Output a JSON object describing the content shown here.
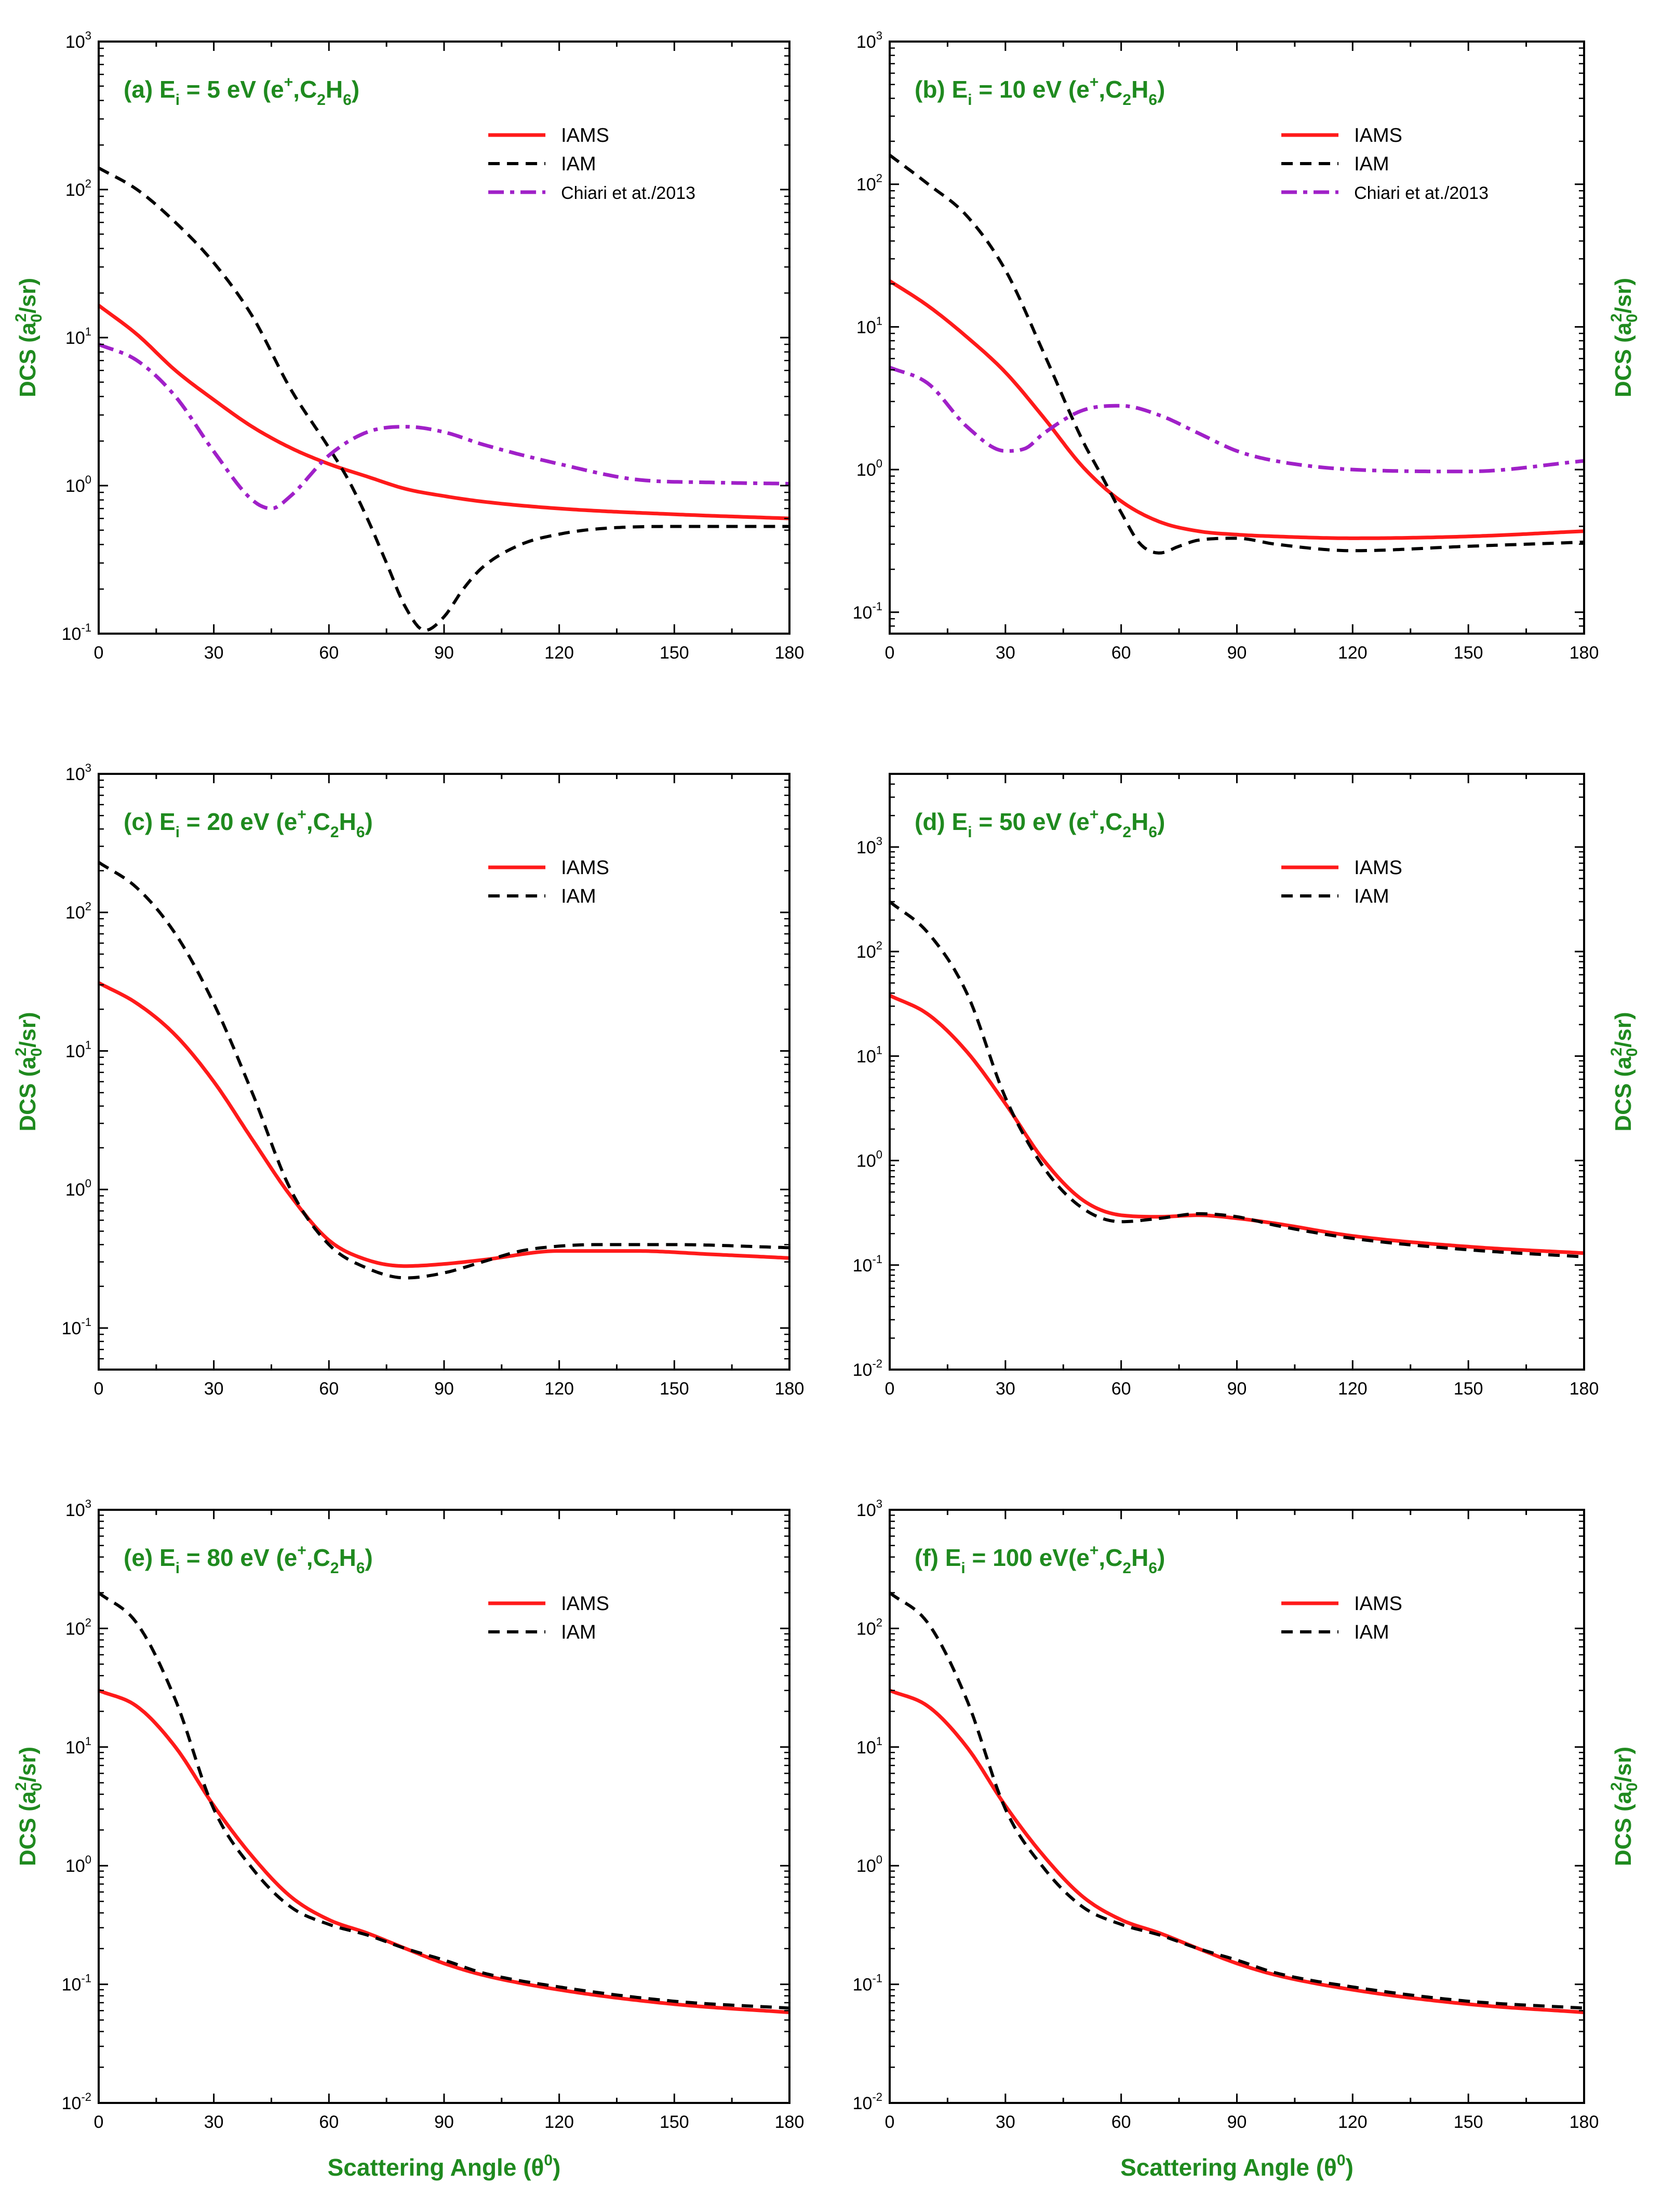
{
  "colors": {
    "IAMS": "#ff1a1a",
    "IAM": "#000000",
    "Chiari": "#a020c8",
    "label": "#1f8a1f"
  },
  "axis_text": {
    "ylabel_main": "DCS (a",
    "ylabel_sub": "0",
    "ylabel_sup": "2",
    "ylabel_end": "/sr)",
    "xlabel_main": "Scattering Angle (θ",
    "xlabel_sup": "0",
    "xlabel_end": ")"
  },
  "chart_data": [
    {
      "panel": "a",
      "type": "line",
      "title": {
        "pre": "(a) E",
        "sub1": "i",
        "mid": " = 5 eV (e",
        "sup": "+",
        "c": ",C",
        "sub2": "2",
        "h": "H",
        "sub3": "6",
        "end": ")"
      },
      "xlabel": "",
      "ylabel": "DCS (a0^2/sr)",
      "ylabel_side": "left",
      "xlim": [
        0,
        180
      ],
      "ylim_exp": [
        -1,
        3
      ],
      "yscale": "log",
      "xticks": [
        "0",
        "30",
        "60",
        "90",
        "120",
        "150",
        "180"
      ],
      "yticks_exp": [
        "-1",
        "0",
        "1",
        "2",
        "3"
      ],
      "series": [
        {
          "name": "IAMS",
          "style": "solid",
          "x": [
            0,
            10,
            20,
            30,
            40,
            50,
            60,
            70,
            80,
            90,
            100,
            120,
            150,
            180
          ],
          "y": [
            16.5,
            10.5,
            6.0,
            3.8,
            2.5,
            1.8,
            1.4,
            1.15,
            0.95,
            0.85,
            0.78,
            0.7,
            0.64,
            0.6
          ]
        },
        {
          "name": "IAM",
          "style": "dash",
          "x": [
            0,
            10,
            20,
            30,
            40,
            50,
            60,
            65,
            70,
            75,
            80,
            85,
            90,
            95,
            100,
            110,
            120,
            130,
            150,
            180
          ],
          "y": [
            140,
            100,
            60,
            32,
            14,
            4.5,
            1.8,
            1.1,
            0.6,
            0.3,
            0.15,
            0.105,
            0.13,
            0.2,
            0.28,
            0.4,
            0.47,
            0.51,
            0.53,
            0.53
          ]
        },
        {
          "name": "Chiari et at./2013",
          "style": "dashdot",
          "x": [
            0,
            10,
            20,
            30,
            40,
            45,
            50,
            60,
            70,
            80,
            90,
            100,
            120,
            140,
            160,
            180
          ],
          "y": [
            9.0,
            7.0,
            4.0,
            1.7,
            0.8,
            0.7,
            0.85,
            1.6,
            2.3,
            2.5,
            2.3,
            1.9,
            1.4,
            1.1,
            1.05,
            1.03
          ]
        }
      ]
    },
    {
      "panel": "b",
      "type": "line",
      "title": {
        "pre": "(b) E",
        "sub1": "i",
        "mid": " = 10 eV (e",
        "sup": "+",
        "c": ",C",
        "sub2": "2",
        "h": "H",
        "sub3": "6",
        "end": ")"
      },
      "xlabel": "",
      "ylabel": "DCS (a0^2/sr)",
      "ylabel_side": "right",
      "xlim": [
        0,
        180
      ],
      "ylim_exp": [
        -1.15,
        3
      ],
      "yscale": "log",
      "xticks": [
        "0",
        "30",
        "60",
        "90",
        "120",
        "150",
        "180"
      ],
      "yticks_exp": [
        "-1",
        "0",
        "1",
        "2",
        "3"
      ],
      "series": [
        {
          "name": "IAMS",
          "style": "solid",
          "x": [
            0,
            10,
            20,
            30,
            40,
            50,
            60,
            70,
            80,
            90,
            100,
            120,
            150,
            180
          ],
          "y": [
            21,
            14,
            8.5,
            4.8,
            2.3,
            1.05,
            0.6,
            0.43,
            0.37,
            0.35,
            0.34,
            0.33,
            0.34,
            0.37
          ]
        },
        {
          "name": "IAM",
          "style": "dash",
          "x": [
            0,
            10,
            20,
            30,
            40,
            50,
            55,
            60,
            65,
            70,
            75,
            80,
            90,
            100,
            120,
            150,
            180
          ],
          "y": [
            160,
            100,
            60,
            25,
            6.5,
            1.6,
            0.9,
            0.5,
            0.3,
            0.26,
            0.29,
            0.32,
            0.33,
            0.3,
            0.27,
            0.29,
            0.31
          ]
        },
        {
          "name": "Chiari et at./2013",
          "style": "dashdot",
          "x": [
            0,
            10,
            20,
            30,
            35,
            40,
            50,
            60,
            70,
            80,
            90,
            100,
            120,
            150,
            180
          ],
          "y": [
            5.2,
            4.0,
            2.0,
            1.35,
            1.4,
            1.8,
            2.6,
            2.8,
            2.4,
            1.8,
            1.35,
            1.15,
            1.0,
            0.97,
            1.15
          ]
        }
      ]
    },
    {
      "panel": "c",
      "type": "line",
      "title": {
        "pre": "(c) E",
        "sub1": "i",
        "mid": " = 20 eV (e",
        "sup": "+",
        "c": ",C",
        "sub2": "2",
        "h": "H",
        "sub3": "6",
        "end": ")"
      },
      "xlabel": "",
      "ylabel": "DCS (a0^2/sr)",
      "ylabel_side": "left",
      "xlim": [
        0,
        180
      ],
      "ylim_exp": [
        -1.3,
        3
      ],
      "yscale": "log",
      "xticks": [
        "0",
        "30",
        "60",
        "90",
        "120",
        "150",
        "180"
      ],
      "yticks_exp": [
        "-1",
        "0",
        "1",
        "2",
        "3"
      ],
      "series": [
        {
          "name": "IAMS",
          "style": "solid",
          "x": [
            0,
            10,
            20,
            30,
            40,
            50,
            60,
            70,
            80,
            90,
            100,
            120,
            140,
            160,
            180
          ],
          "y": [
            31,
            22,
            13,
            6.0,
            2.3,
            0.9,
            0.43,
            0.31,
            0.28,
            0.29,
            0.31,
            0.36,
            0.36,
            0.34,
            0.32
          ]
        },
        {
          "name": "IAM",
          "style": "dash",
          "x": [
            0,
            10,
            20,
            30,
            40,
            50,
            60,
            70,
            80,
            90,
            100,
            110,
            120,
            130,
            150,
            180
          ],
          "y": [
            230,
            150,
            70,
            22,
            5.0,
            1.0,
            0.4,
            0.27,
            0.23,
            0.25,
            0.3,
            0.36,
            0.39,
            0.4,
            0.4,
            0.38
          ]
        }
      ]
    },
    {
      "panel": "d",
      "type": "line",
      "title": {
        "pre": "(d) E",
        "sub1": "i",
        "mid": " = 50 eV (e",
        "sup": "+",
        "c": ",C",
        "sub2": "2",
        "h": "H",
        "sub3": "6",
        "end": ")"
      },
      "xlabel": "",
      "ylabel": "DCS (a0^2/sr)",
      "ylabel_side": "right",
      "xlim": [
        0,
        180
      ],
      "ylim_exp": [
        -2,
        3.7
      ],
      "yscale": "log",
      "xticks": [
        "0",
        "30",
        "60",
        "90",
        "120",
        "150",
        "180"
      ],
      "yticks_exp": [
        "-2",
        "-1",
        "0",
        "1",
        "2",
        "3"
      ],
      "series": [
        {
          "name": "IAMS",
          "style": "solid",
          "x": [
            0,
            10,
            20,
            30,
            40,
            50,
            60,
            70,
            80,
            90,
            100,
            120,
            150,
            180
          ],
          "y": [
            38,
            25,
            11,
            3.5,
            1.0,
            0.42,
            0.3,
            0.29,
            0.3,
            0.28,
            0.25,
            0.19,
            0.15,
            0.13
          ]
        },
        {
          "name": "IAM",
          "style": "dash",
          "x": [
            0,
            10,
            20,
            30,
            40,
            50,
            60,
            70,
            80,
            90,
            100,
            120,
            150,
            180
          ],
          "y": [
            300,
            150,
            40,
            4.0,
            0.85,
            0.35,
            0.26,
            0.28,
            0.31,
            0.29,
            0.24,
            0.18,
            0.14,
            0.12
          ]
        }
      ]
    },
    {
      "panel": "e",
      "type": "line",
      "title": {
        "pre": "(e) E",
        "sub1": "i",
        "mid": " = 80 eV (e",
        "sup": "+",
        "c": ",C",
        "sub2": "2",
        "h": "H",
        "sub3": "6",
        "end": ")"
      },
      "xlabel": "Scattering Angle",
      "ylabel": "DCS (a0^2/sr)",
      "ylabel_side": "left",
      "xlim": [
        0,
        180
      ],
      "ylim_exp": [
        -2,
        3
      ],
      "yscale": "log",
      "xticks": [
        "0",
        "30",
        "60",
        "90",
        "120",
        "150",
        "180"
      ],
      "yticks_exp": [
        "-2",
        "-1",
        "0",
        "1",
        "2",
        "3"
      ],
      "series": [
        {
          "name": "IAMS",
          "style": "solid",
          "x": [
            0,
            10,
            20,
            30,
            40,
            50,
            60,
            70,
            80,
            90,
            100,
            120,
            150,
            180
          ],
          "y": [
            30,
            22,
            10,
            3.2,
            1.2,
            0.55,
            0.35,
            0.27,
            0.2,
            0.15,
            0.12,
            0.09,
            0.068,
            0.058
          ]
        },
        {
          "name": "IAM",
          "style": "dash",
          "x": [
            0,
            10,
            20,
            30,
            40,
            50,
            60,
            70,
            80,
            90,
            100,
            120,
            150,
            180
          ],
          "y": [
            200,
            110,
            25,
            3.0,
            0.95,
            0.45,
            0.32,
            0.26,
            0.2,
            0.16,
            0.125,
            0.095,
            0.072,
            0.063
          ]
        }
      ]
    },
    {
      "panel": "f",
      "type": "line",
      "title": {
        "pre": "(f) E",
        "sub1": "i",
        "mid": " = 100 eV(e",
        "sup": "+",
        "c": ",C",
        "sub2": "2",
        "h": "H",
        "sub3": "6",
        "end": ")"
      },
      "xlabel": "Scattering Angle",
      "ylabel": "DCS (a0^2/sr)",
      "ylabel_side": "right",
      "xlim": [
        0,
        180
      ],
      "ylim_exp": [
        -2,
        3
      ],
      "yscale": "log",
      "xticks": [
        "0",
        "30",
        "60",
        "90",
        "120",
        "150",
        "180"
      ],
      "yticks_exp": [
        "-2",
        "-1",
        "0",
        "1",
        "2",
        "3"
      ],
      "series": [
        {
          "name": "IAMS",
          "style": "solid",
          "x": [
            0,
            10,
            20,
            30,
            40,
            50,
            60,
            70,
            80,
            90,
            100,
            120,
            150,
            180
          ],
          "y": [
            30,
            22,
            10,
            3.2,
            1.2,
            0.55,
            0.35,
            0.27,
            0.2,
            0.15,
            0.12,
            0.09,
            0.068,
            0.058
          ]
        },
        {
          "name": "IAM",
          "style": "dash",
          "x": [
            0,
            10,
            20,
            30,
            40,
            50,
            60,
            70,
            80,
            90,
            100,
            120,
            150,
            180
          ],
          "y": [
            200,
            110,
            25,
            3.0,
            0.95,
            0.45,
            0.32,
            0.26,
            0.2,
            0.16,
            0.125,
            0.095,
            0.072,
            0.063
          ]
        }
      ]
    }
  ]
}
